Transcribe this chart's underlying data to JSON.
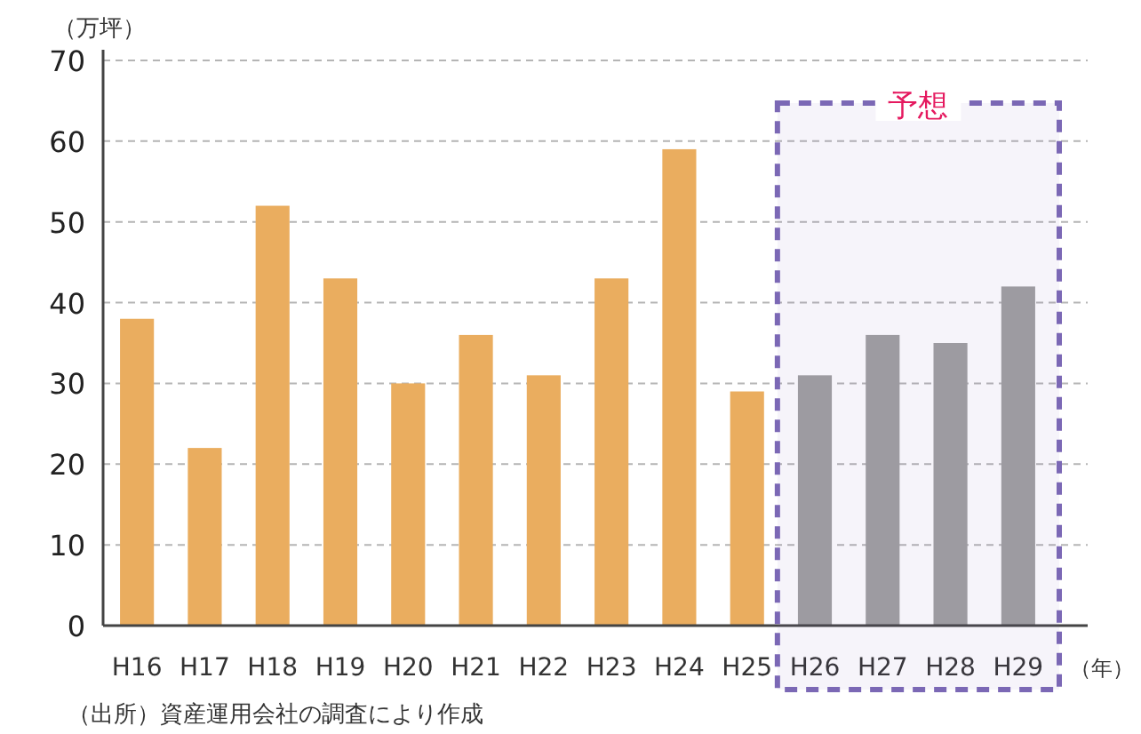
{
  "chart_data": {
    "type": "bar",
    "ylabel": "（万坪）",
    "xlabel": "（年）",
    "categories": [
      "H16",
      "H17",
      "H18",
      "H19",
      "H20",
      "H21",
      "H22",
      "H23",
      "H24",
      "H25",
      "H26",
      "H27",
      "H28",
      "H29"
    ],
    "values": [
      38,
      22,
      52,
      43,
      30,
      36,
      31,
      43,
      59,
      29,
      31,
      36,
      35,
      42
    ],
    "colors": [
      "#eaad5f",
      "#eaad5f",
      "#eaad5f",
      "#eaad5f",
      "#eaad5f",
      "#eaad5f",
      "#eaad5f",
      "#eaad5f",
      "#eaad5f",
      "#eaad5f",
      "#a0a0a0",
      "#a0a0a0",
      "#a0a0a0",
      "#a0a0a0"
    ],
    "ylim": [
      0,
      70
    ],
    "yticks": [
      0,
      10,
      20,
      30,
      40,
      50,
      60,
      70
    ],
    "grid": "y",
    "bands": [
      {
        "axis": "x",
        "from": "H26",
        "to": "H29",
        "label": "予想",
        "color": "#7b68b5"
      }
    ],
    "annotations": [
      "（出所）資産運用会社の調査により作成"
    ]
  }
}
